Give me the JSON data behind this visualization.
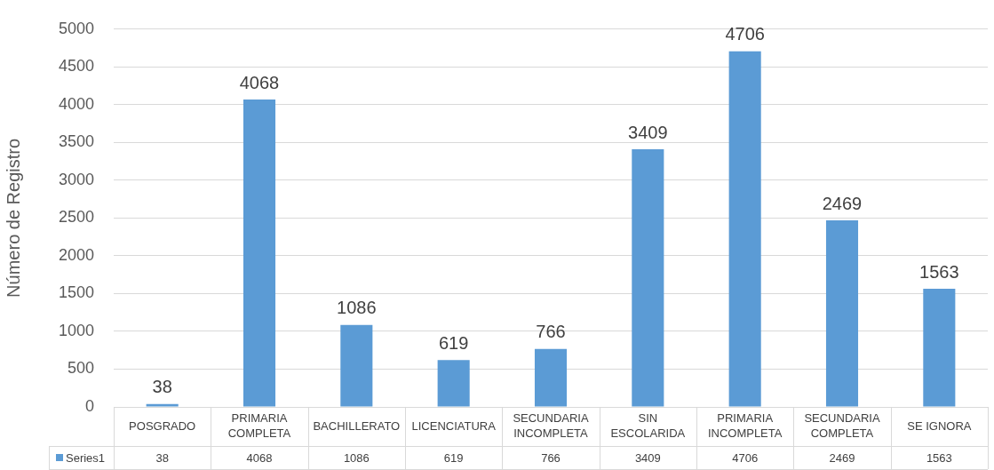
{
  "chart_data": {
    "type": "bar",
    "ylabel": "Número de Registro",
    "categories": [
      "POSGRADO",
      "PRIMARIA COMPLETA",
      "BACHILLERATO",
      "LICENCIATURA",
      "SECUNDARIA INCOMPLETA",
      "SIN ESCOLARIDA",
      "PRIMARIA INCOMPLETA",
      "SECUNDARIA COMPLETA",
      "SE IGNORA"
    ],
    "series": [
      {
        "name": "Series1",
        "color": "#5b9bd5",
        "values": [
          38,
          4068,
          1086,
          619,
          766,
          3409,
          4706,
          2469,
          1563
        ]
      }
    ],
    "annotations": [
      "38",
      "4068",
      "1086",
      "619",
      "766",
      "3409",
      "4706",
      "2469",
      "1563"
    ],
    "ylim": [
      0,
      5000
    ],
    "yticks": [
      0,
      500,
      1000,
      1500,
      2000,
      2500,
      3000,
      3500,
      4000,
      4500,
      5000
    ],
    "grid": "y",
    "legend": "bottom",
    "data_labels": true
  }
}
